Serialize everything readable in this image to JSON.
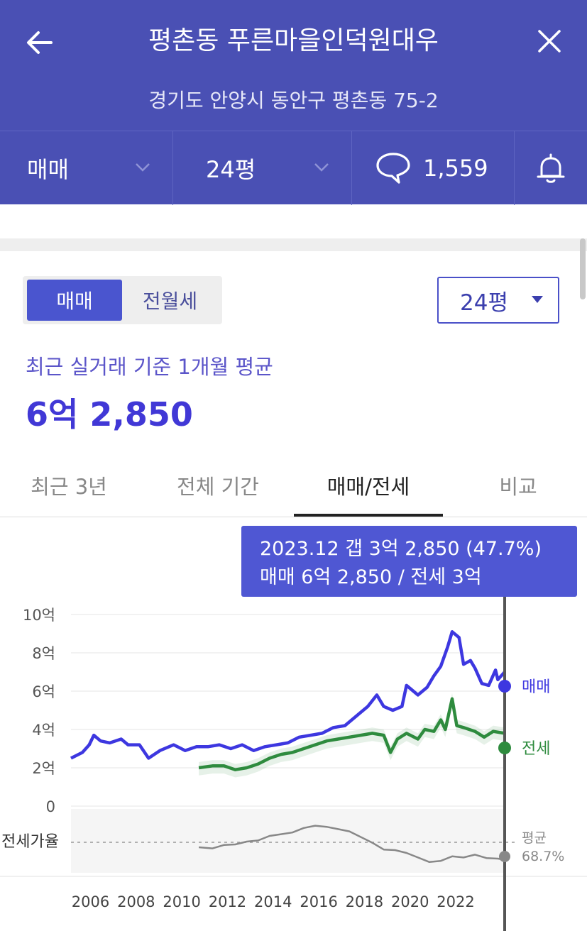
{
  "header": {
    "title": "평촌동 푸른마을인덕원대우",
    "address": "경기도 안양시 동안구 평촌동 75-2",
    "deal_type": "매매",
    "size": "24평",
    "comment_count": "1,559",
    "back_icon": "arrow-left-icon",
    "close_icon": "close-icon",
    "comment_icon": "speech-bubble-icon",
    "bell_icon": "bell-icon",
    "dropdown_icon": "chevron-down-icon"
  },
  "toggle": {
    "active": "매매",
    "inactive": "전월세"
  },
  "size_select": {
    "value": "24평",
    "caret_icon": "caret-down-icon"
  },
  "summary": {
    "label": "최근 실거래 기준 1개월 평균",
    "price": "6억 2,850"
  },
  "tabs": [
    {
      "label": "최근 3년",
      "active": false
    },
    {
      "label": "전체 기간",
      "active": false
    },
    {
      "label": "매매/전세",
      "active": true
    },
    {
      "label": "비교",
      "active": false
    }
  ],
  "tooltip": {
    "line1": "2023.12  갭 3억 2,850 (47.7%)",
    "line2": "매매 6억 2,850 / 전세 3억"
  },
  "colors": {
    "header_bg": "#4a50b4",
    "accent": "#4a55cf",
    "sale_line": "#3d37e0",
    "jeonse_line": "#2e8b3e",
    "ratio_line": "#888888"
  },
  "chart_data": {
    "type": "line",
    "ylim": [
      0,
      10
    ],
    "y_ticks": [
      "10억",
      "8억",
      "6억",
      "4억",
      "2억",
      "0"
    ],
    "x_ticks": [
      "2006",
      "2008",
      "2010",
      "2012",
      "2014",
      "2016",
      "2018",
      "2020",
      "2022"
    ],
    "xlim": [
      2005.3,
      2024.3
    ],
    "series": [
      {
        "name": "매매",
        "unit": "억",
        "points": [
          [
            2005.3,
            2.5
          ],
          [
            2005.8,
            2.8
          ],
          [
            2006.1,
            3.2
          ],
          [
            2006.3,
            3.7
          ],
          [
            2006.6,
            3.4
          ],
          [
            2007.0,
            3.3
          ],
          [
            2007.5,
            3.5
          ],
          [
            2007.8,
            3.2
          ],
          [
            2008.3,
            3.2
          ],
          [
            2008.7,
            2.5
          ],
          [
            2009.2,
            2.9
          ],
          [
            2009.8,
            3.2
          ],
          [
            2010.3,
            2.9
          ],
          [
            2010.8,
            3.1
          ],
          [
            2011.3,
            3.1
          ],
          [
            2011.8,
            3.2
          ],
          [
            2012.3,
            3.0
          ],
          [
            2012.8,
            3.2
          ],
          [
            2013.3,
            2.9
          ],
          [
            2013.8,
            3.1
          ],
          [
            2014.3,
            3.2
          ],
          [
            2014.8,
            3.3
          ],
          [
            2015.3,
            3.6
          ],
          [
            2015.8,
            3.7
          ],
          [
            2016.3,
            3.8
          ],
          [
            2016.8,
            4.1
          ],
          [
            2017.3,
            4.2
          ],
          [
            2017.8,
            4.7
          ],
          [
            2018.3,
            5.2
          ],
          [
            2018.7,
            5.8
          ],
          [
            2019.0,
            5.2
          ],
          [
            2019.4,
            5.0
          ],
          [
            2019.8,
            5.2
          ],
          [
            2020.0,
            6.3
          ],
          [
            2020.5,
            5.8
          ],
          [
            2020.9,
            6.2
          ],
          [
            2021.2,
            6.8
          ],
          [
            2021.5,
            7.3
          ],
          [
            2021.8,
            8.3
          ],
          [
            2022.0,
            9.1
          ],
          [
            2022.3,
            8.8
          ],
          [
            2022.5,
            7.4
          ],
          [
            2022.8,
            7.6
          ],
          [
            2023.0,
            7.2
          ],
          [
            2023.3,
            6.4
          ],
          [
            2023.6,
            6.3
          ],
          [
            2023.9,
            7.1
          ],
          [
            2024.0,
            6.6
          ],
          [
            2024.3,
            7.0
          ]
        ]
      },
      {
        "name": "전세",
        "unit": "억",
        "points": [
          [
            2010.9,
            2.0
          ],
          [
            2011.5,
            2.1
          ],
          [
            2012.0,
            2.1
          ],
          [
            2012.5,
            1.9
          ],
          [
            2013.0,
            2.0
          ],
          [
            2013.5,
            2.2
          ],
          [
            2014.0,
            2.5
          ],
          [
            2014.5,
            2.7
          ],
          [
            2015.0,
            2.8
          ],
          [
            2015.5,
            3.0
          ],
          [
            2016.0,
            3.2
          ],
          [
            2016.5,
            3.4
          ],
          [
            2017.0,
            3.5
          ],
          [
            2017.5,
            3.6
          ],
          [
            2018.0,
            3.7
          ],
          [
            2018.5,
            3.8
          ],
          [
            2019.0,
            3.7
          ],
          [
            2019.3,
            2.8
          ],
          [
            2019.6,
            3.5
          ],
          [
            2020.0,
            3.8
          ],
          [
            2020.5,
            3.5
          ],
          [
            2020.8,
            4.0
          ],
          [
            2021.2,
            3.9
          ],
          [
            2021.5,
            4.5
          ],
          [
            2021.7,
            4.0
          ],
          [
            2022.0,
            5.6
          ],
          [
            2022.2,
            4.2
          ],
          [
            2022.5,
            4.1
          ],
          [
            2023.0,
            3.9
          ],
          [
            2023.4,
            3.6
          ],
          [
            2023.8,
            3.9
          ],
          [
            2024.3,
            3.8
          ]
        ]
      },
      {
        "name": "전세가율",
        "points": [
          [
            2010.9,
            0.4
          ],
          [
            2011.5,
            0.38
          ],
          [
            2012.0,
            0.44
          ],
          [
            2012.5,
            0.45
          ],
          [
            2013.0,
            0.5
          ],
          [
            2013.5,
            0.52
          ],
          [
            2014.0,
            0.6
          ],
          [
            2014.5,
            0.63
          ],
          [
            2015.0,
            0.66
          ],
          [
            2015.5,
            0.74
          ],
          [
            2016.0,
            0.78
          ],
          [
            2016.5,
            0.76
          ],
          [
            2017.0,
            0.72
          ],
          [
            2017.5,
            0.68
          ],
          [
            2018.0,
            0.58
          ],
          [
            2018.5,
            0.48
          ],
          [
            2019.0,
            0.36
          ],
          [
            2019.5,
            0.35
          ],
          [
            2020.0,
            0.3
          ],
          [
            2020.5,
            0.22
          ],
          [
            2021.0,
            0.14
          ],
          [
            2021.5,
            0.16
          ],
          [
            2022.0,
            0.24
          ],
          [
            2022.5,
            0.22
          ],
          [
            2023.0,
            0.27
          ],
          [
            2023.5,
            0.21
          ],
          [
            2024.0,
            0.2
          ],
          [
            2024.3,
            0.18
          ]
        ]
      }
    ],
    "current_x": 2024.3,
    "end_labels": {
      "sale": "매매",
      "jeonse": "전세"
    },
    "ratio_label": "전세가율",
    "avg_label": "평균",
    "avg_value": "68.7%",
    "grid": true
  }
}
